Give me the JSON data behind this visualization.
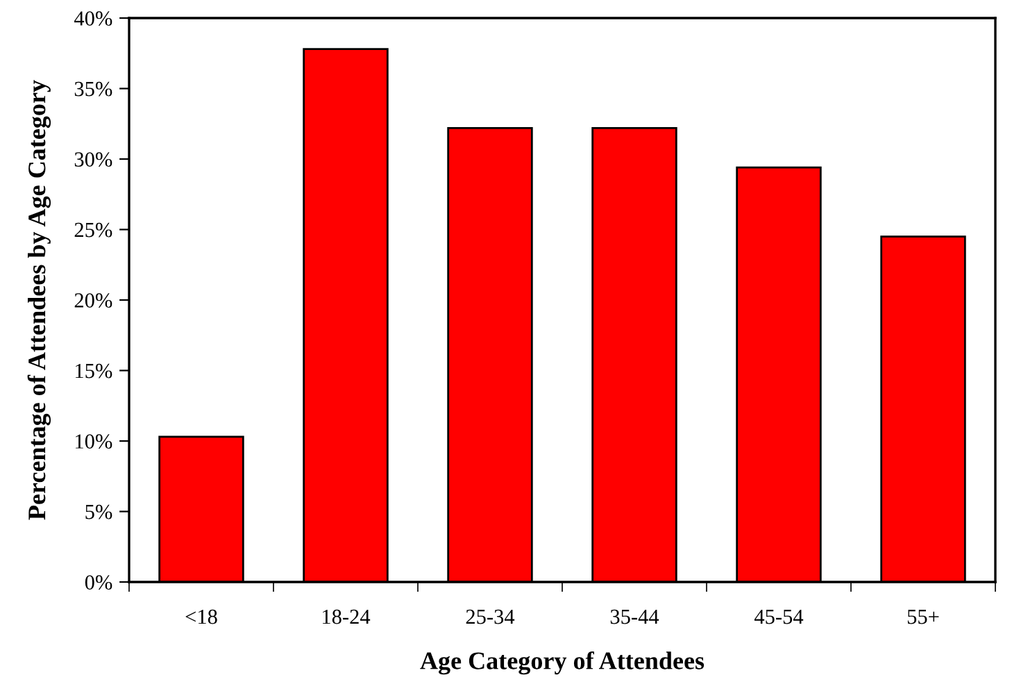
{
  "chart_data": {
    "type": "bar",
    "xlabel": "Age Category of Attendees",
    "ylabel": "Percentage of Attendees by Age Category",
    "categories": [
      "<18",
      "18-24",
      "25-34",
      "35-44",
      "45-54",
      "55+"
    ],
    "values": [
      10.3,
      37.8,
      32.2,
      32.2,
      29.4,
      24.5
    ],
    "color": "#ff0000",
    "ylim": [
      0,
      40
    ],
    "yticks": [
      {
        "value": 0,
        "label": "0%"
      },
      {
        "value": 5,
        "label": "5%"
      },
      {
        "value": 10,
        "label": "10%"
      },
      {
        "value": 15,
        "label": "15%"
      },
      {
        "value": 20,
        "label": "20%"
      },
      {
        "value": 25,
        "label": "25%"
      },
      {
        "value": 30,
        "label": "30%"
      },
      {
        "value": 35,
        "label": "35%"
      },
      {
        "value": 40,
        "label": "40%"
      }
    ],
    "grid": false,
    "legend": false
  }
}
